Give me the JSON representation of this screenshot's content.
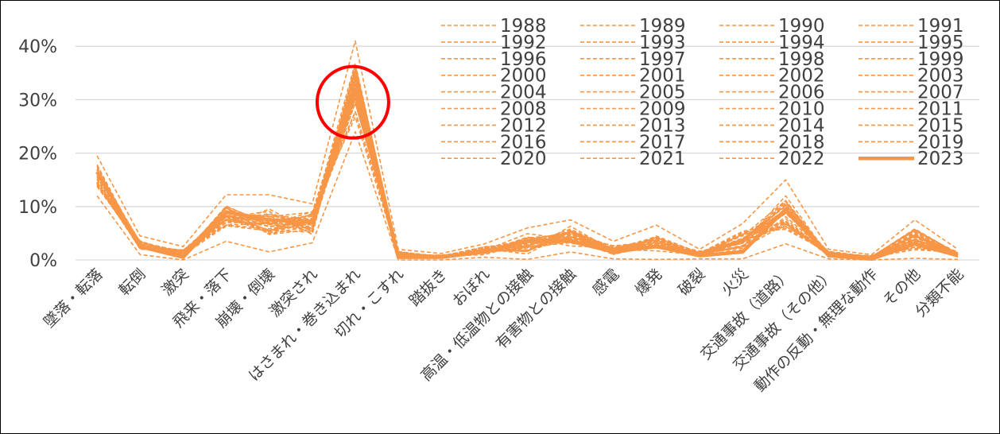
{
  "chart_data": {
    "type": "line",
    "title": "",
    "xlabel": "",
    "ylabel": "",
    "ylim": [
      0,
      0.45
    ],
    "y_ticks": [
      {
        "value": 0,
        "label": "0%"
      },
      {
        "value": 0.1,
        "label": "10%"
      },
      {
        "value": 0.2,
        "label": "20%"
      },
      {
        "value": 0.3,
        "label": "30%"
      },
      {
        "value": 0.4,
        "label": "40%"
      }
    ],
    "grid": true,
    "legend_position": "top-right",
    "categories": [
      "墜落・転落",
      "転倒",
      "激突",
      "飛来・落下",
      "崩壊・倒壊",
      "激突され",
      "はさまれ・巻き込まれ",
      "切れ・こすれ",
      "踏抜き",
      "おぼれ",
      "高温・低温物との接触",
      "有害物との接触",
      "感電",
      "爆発",
      "破裂",
      "火災",
      "交通事故（道路）",
      "交通事故（その他）",
      "動作の反動・無理な動作",
      "その他",
      "分類不能"
    ],
    "series_color": "#F79646",
    "years": [
      1988,
      1989,
      1990,
      1991,
      1992,
      1993,
      1994,
      1995,
      1996,
      1997,
      1998,
      1999,
      2000,
      2001,
      2002,
      2003,
      2004,
      2005,
      2006,
      2007,
      2008,
      2009,
      2010,
      2011,
      2012,
      2013,
      2014,
      2015,
      2016,
      2017,
      2018,
      2019,
      2020,
      2021,
      2022,
      2023
    ],
    "band_low": [
      0.12,
      0.01,
      0.0,
      0.035,
      0.015,
      0.032,
      0.24,
      0.0,
      0.0,
      0.005,
      0.001,
      0.015,
      0.002,
      0.001,
      0.002,
      0.002,
      0.03,
      0.002,
      0.0,
      0.003,
      0.001
    ],
    "band_high": [
      0.195,
      0.045,
      0.025,
      0.122,
      0.122,
      0.105,
      0.41,
      0.02,
      0.012,
      0.03,
      0.06,
      0.075,
      0.035,
      0.065,
      0.02,
      0.068,
      0.15,
      0.02,
      0.01,
      0.075,
      0.02
    ],
    "series_2023": [
      0.165,
      0.025,
      0.005,
      0.09,
      0.075,
      0.07,
      0.32,
      0.005,
      0.005,
      0.015,
      0.035,
      0.035,
      0.015,
      0.025,
      0.008,
      0.015,
      0.095,
      0.008,
      0.002,
      0.03,
      0.008
    ],
    "annotation": {
      "category_index": 6,
      "value": 0.31,
      "shape": "circle",
      "color": "#FF0000"
    }
  }
}
